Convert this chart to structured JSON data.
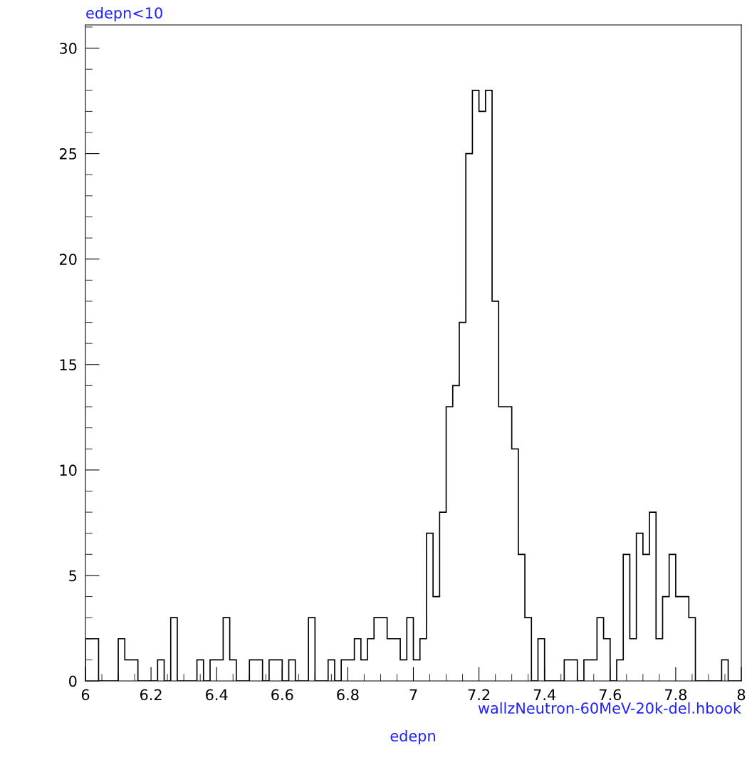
{
  "chart_data": {
    "type": "histogram",
    "title": "edepn<10",
    "xlabel": "edepn",
    "annotations": [
      "wallzNeutron-60MeV-20k-del.hbook"
    ],
    "bins": [
      6.0,
      6.02,
      6.04,
      6.06,
      6.08,
      6.1,
      6.12,
      6.14,
      6.16,
      6.18,
      6.2,
      6.22,
      6.24,
      6.26,
      6.28,
      6.3,
      6.32,
      6.34,
      6.36,
      6.38,
      6.4,
      6.42,
      6.44,
      6.46,
      6.48,
      6.5,
      6.52,
      6.54,
      6.56,
      6.58,
      6.6,
      6.62,
      6.64,
      6.66,
      6.68,
      6.7,
      6.72,
      6.74,
      6.76,
      6.78,
      6.8,
      6.82,
      6.84,
      6.86,
      6.88,
      6.9,
      6.92,
      6.94,
      6.96,
      6.98,
      7.0,
      7.02,
      7.04,
      7.06,
      7.08,
      7.1,
      7.12,
      7.14,
      7.16,
      7.18,
      7.2,
      7.22,
      7.24,
      7.26,
      7.28,
      7.3,
      7.32,
      7.34,
      7.36,
      7.38,
      7.4,
      7.42,
      7.44,
      7.46,
      7.48,
      7.5,
      7.52,
      7.54,
      7.56,
      7.58,
      7.6,
      7.62,
      7.64,
      7.66,
      7.68,
      7.7,
      7.72,
      7.74,
      7.76,
      7.78,
      7.8,
      7.82,
      7.84,
      7.86,
      7.88,
      7.9,
      7.92,
      7.94,
      7.96,
      7.98,
      8.0
    ],
    "values": [
      2,
      2,
      0,
      0,
      0,
      2,
      1,
      1,
      0,
      0,
      0,
      1,
      0,
      3,
      0,
      0,
      0,
      1,
      0,
      1,
      1,
      3,
      1,
      0,
      0,
      1,
      1,
      0,
      1,
      1,
      0,
      1,
      0,
      0,
      3,
      0,
      0,
      1,
      0,
      1,
      1,
      2,
      1,
      2,
      3,
      3,
      2,
      2,
      1,
      3,
      1,
      2,
      7,
      4,
      8,
      13,
      14,
      17,
      25,
      28,
      27,
      28,
      18,
      13,
      13,
      11,
      6,
      3,
      0,
      2,
      0,
      0,
      0,
      1,
      1,
      0,
      1,
      1,
      3,
      2,
      0,
      1,
      6,
      2,
      7,
      6,
      8,
      2,
      4,
      6,
      4,
      4,
      3,
      0,
      0,
      0,
      0,
      1,
      0,
      0
    ],
    "color": "#000000",
    "xlim": [
      6,
      8
    ],
    "ylim": [
      0,
      31.1
    ],
    "xticks": [
      6,
      {
        "value": 6.2,
        "label": "6.2"
      },
      {
        "value": 6.4,
        "label": "6.4"
      },
      {
        "value": 6.6,
        "label": "6.6"
      },
      {
        "value": 6.8,
        "label": "6.8"
      },
      7,
      {
        "value": 7.2,
        "label": "7.2"
      },
      {
        "value": 7.4,
        "label": "7.4"
      },
      {
        "value": 7.6,
        "label": "7.6"
      },
      {
        "value": 7.8,
        "label": "7.8"
      },
      8
    ],
    "yticks": [
      0,
      5,
      10,
      15,
      20,
      25,
      30
    ],
    "grid": false,
    "legend": false
  }
}
